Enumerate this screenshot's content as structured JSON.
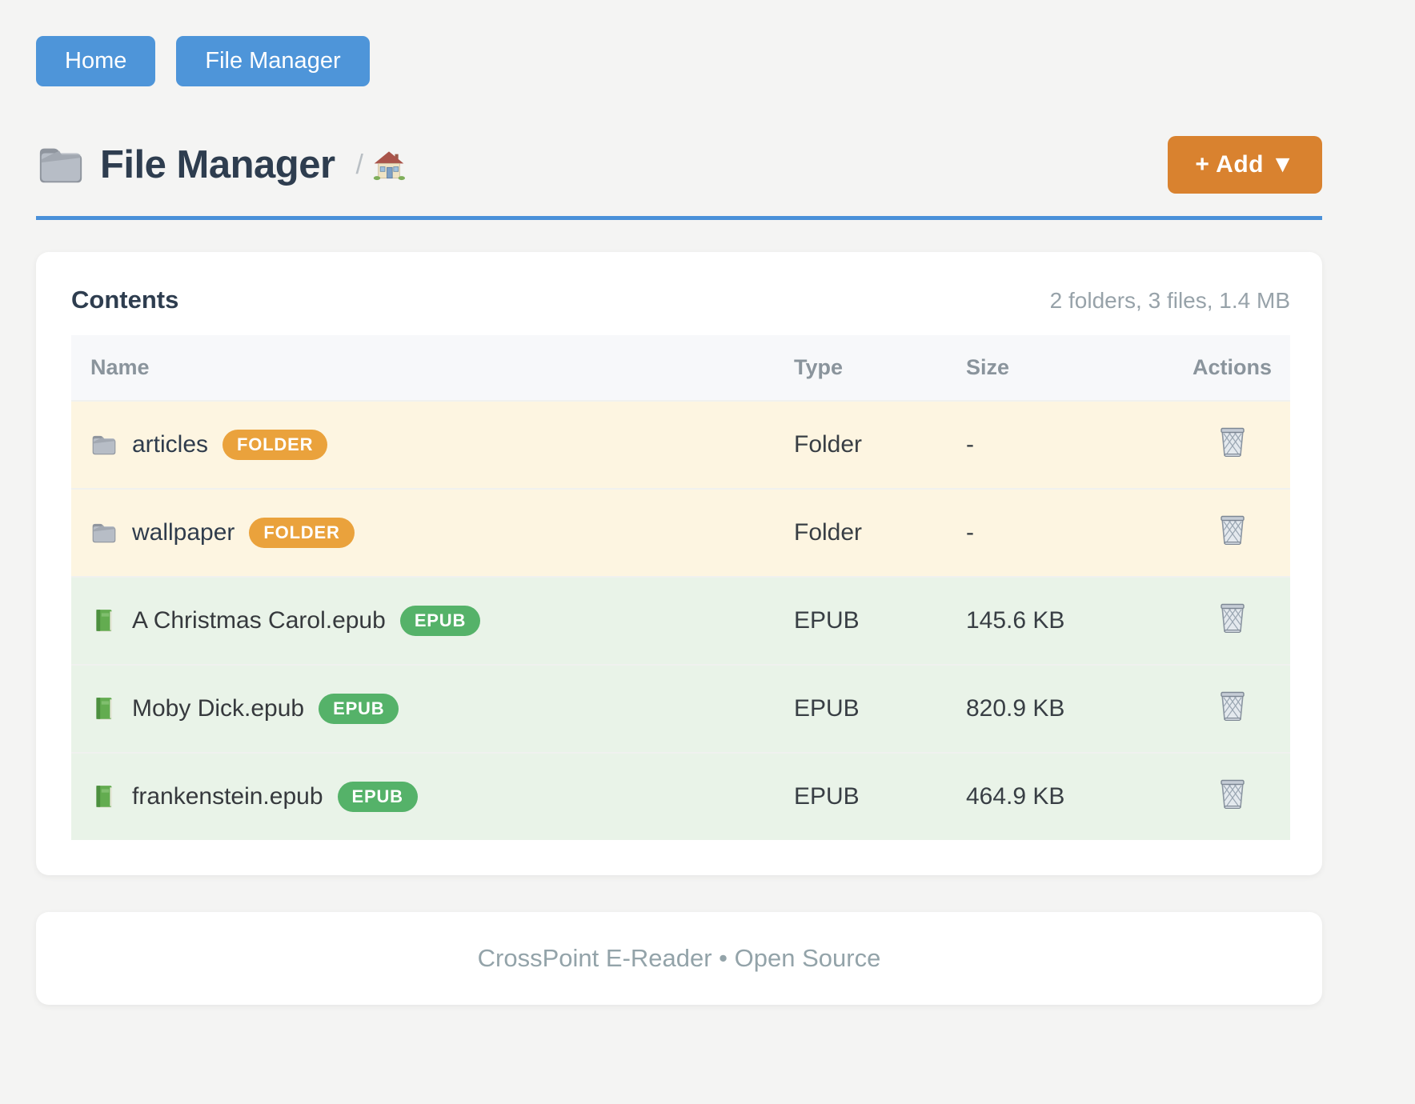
{
  "nav": {
    "buttons": [
      {
        "label": "Home"
      },
      {
        "label": "File Manager"
      }
    ]
  },
  "header": {
    "title": "File Manager",
    "title_icon": "folder-icon",
    "breadcrumb_separator": "/",
    "breadcrumb_home_icon": "house-icon",
    "add_button_label": "+ Add ▼"
  },
  "content_card": {
    "title": "Contents",
    "summary": "2 folders, 3 files, 1.4 MB",
    "table": {
      "columns": [
        "Name",
        "Type",
        "Size",
        "Actions"
      ],
      "action_icon": "wastebasket-icon",
      "rows": [
        {
          "icon": "folder-icon",
          "name": "articles",
          "badge": "FOLDER",
          "badge_color": "#eaa23c",
          "type": "Folder",
          "size": "-",
          "kind": "folder"
        },
        {
          "icon": "folder-icon",
          "name": "wallpaper",
          "badge": "FOLDER",
          "badge_color": "#eaa23c",
          "type": "Folder",
          "size": "-",
          "kind": "folder"
        },
        {
          "icon": "book-icon",
          "name": "A Christmas Carol.epub",
          "badge": "EPUB",
          "badge_color": "#55b269",
          "type": "EPUB",
          "size": "145.6 KB",
          "kind": "file"
        },
        {
          "icon": "book-icon",
          "name": "Moby Dick.epub",
          "badge": "EPUB",
          "badge_color": "#55b269",
          "type": "EPUB",
          "size": "820.9 KB",
          "kind": "file"
        },
        {
          "icon": "book-icon",
          "name": "frankenstein.epub",
          "badge": "EPUB",
          "badge_color": "#55b269",
          "type": "EPUB",
          "size": "464.9 KB",
          "kind": "file"
        }
      ]
    }
  },
  "footer": {
    "text": "CrossPoint E-Reader • Open Source"
  },
  "colors": {
    "nav_button_blue": "#4e95d9",
    "divider_blue": "#4a90d9",
    "add_button_orange": "#d9822f",
    "folder_badge_orange": "#eaa23c",
    "epub_badge_green": "#55b269",
    "folder_row_bg": "#fdf5e1",
    "file_row_bg": "#e9f3e8",
    "title_text": "#2e3d4f",
    "muted_text": "#97a2a9"
  }
}
